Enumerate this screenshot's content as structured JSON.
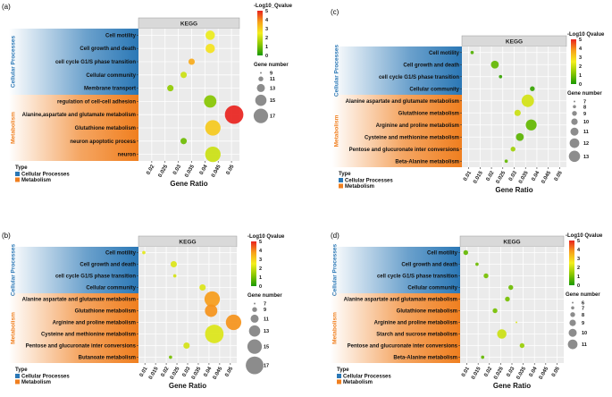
{
  "colors": {
    "cellular_bg": "#2b78b6",
    "metabolism_bg": "#f07f1f",
    "plot_bg": "#ebebeb",
    "header_bg": "#d9d9d9",
    "grid": "#ffffff",
    "scale": [
      "#1a9900",
      "#8cc800",
      "#f4ee1e",
      "#f7a11a",
      "#e8231e"
    ]
  },
  "chart_data": [
    {
      "panel_label": "(a)",
      "type": "scatter",
      "title": "KEGG",
      "xlabel": "Gene Ratio",
      "x_ticks": [
        "0.02",
        "0.025",
        "0.03",
        "0.035",
        "0.04",
        "0.045",
        "0.05"
      ],
      "xlim": [
        0.015,
        0.053
      ],
      "categories": [
        {
          "group": "Cellular Processes",
          "labels": [
            "Cell motility",
            "Cell growth and death",
            "cell cycle G1/S phase transition",
            "Cellular community",
            "Membrane transport"
          ]
        },
        {
          "group": "Metabolism",
          "labels": [
            "regulation of cell-cell adhesion",
            "Alanine,aspartate and glutamate metabolism",
            "Glutathione metabolism",
            "neuron apoptotic process",
            "neuron"
          ]
        }
      ],
      "points": [
        {
          "y": "Cell motility",
          "x": 0.042,
          "genes": 11,
          "q": 2.4
        },
        {
          "y": "Cell growth and death",
          "x": 0.042,
          "genes": 11,
          "q": 2.7
        },
        {
          "y": "cell cycle G1/S phase transition",
          "x": 0.035,
          "genes": 9,
          "q": 3.6
        },
        {
          "y": "Cellular community",
          "x": 0.032,
          "genes": 9,
          "q": 2.0
        },
        {
          "y": "Membrane transport",
          "x": 0.027,
          "genes": 9,
          "q": 1.3
        },
        {
          "y": "regulation of cell-cell adhesion",
          "x": 0.042,
          "genes": 13,
          "q": 1.2
        },
        {
          "y": "Alanine,aspartate and glutamate metabolism",
          "x": 0.051,
          "genes": 17,
          "q": 5.0
        },
        {
          "y": "Glutathione metabolism",
          "x": 0.043,
          "genes": 15,
          "q": 3.1
        },
        {
          "y": "neuron apoptotic process",
          "x": 0.032,
          "genes": 9,
          "q": 0.9
        },
        {
          "y": "neuron",
          "x": 0.043,
          "genes": 15,
          "q": 2.0
        }
      ],
      "color_legend_title": "-Log10_Qvalue",
      "color_ticks": [
        5,
        4,
        3,
        2,
        1,
        0
      ],
      "size_legend_title": "Gene number",
      "size_legend": [
        9,
        11,
        13,
        15,
        17
      ],
      "type_legend_title": "Type",
      "type_legend": [
        "Cellular Processes",
        "Metabolism"
      ]
    },
    {
      "panel_label": "(b)",
      "type": "scatter",
      "title": "KEGG",
      "xlabel": "Gene Ratio",
      "x_ticks": [
        "0.01",
        "0.015",
        "0.02",
        "0.025",
        "0.03",
        "0.035",
        "0.04",
        "0.045",
        "0.05"
      ],
      "xlim": [
        0.007,
        0.053
      ],
      "categories": [
        {
          "group": "Cellular Processes",
          "labels": [
            "Cell motility",
            "Cell growth and death",
            "cell cycle G1/S phase transition",
            "Cellular community"
          ]
        },
        {
          "group": "Metabolism",
          "labels": [
            "Alanine aspartate and glutamate metabolism",
            "Glutathione metabolism",
            "Arginine and proline metabolism",
            "Cysteine and methionine metabolism",
            "Pentose and glucuronate inter conversions",
            "Butanoate metabolism"
          ]
        }
      ],
      "points": [
        {
          "y": "Cell motility",
          "x": 0.0095,
          "genes": 7,
          "q": 2.3
        },
        {
          "y": "Cell growth and death",
          "x": 0.0235,
          "genes": 9,
          "q": 2.2
        },
        {
          "y": "cell cycle G1/S phase transition",
          "x": 0.024,
          "genes": 7,
          "q": 2.1
        },
        {
          "y": "Cellular community",
          "x": 0.037,
          "genes": 9,
          "q": 2.2
        },
        {
          "y": "Alanine aspartate and glutamate metabolism",
          "x": 0.0415,
          "genes": 15,
          "q": 3.8
        },
        {
          "y": "Glutathione metabolism",
          "x": 0.041,
          "genes": 13,
          "q": 3.9
        },
        {
          "y": "Arginine and proline metabolism",
          "x": 0.0515,
          "genes": 15,
          "q": 3.9
        },
        {
          "y": "Cysteine and methionine metabolism",
          "x": 0.0425,
          "genes": 17,
          "q": 2.2
        },
        {
          "y": "Pentose and glucuronate inter conversions",
          "x": 0.0295,
          "genes": 9,
          "q": 2.1
        },
        {
          "y": "Butanoate metabolism",
          "x": 0.022,
          "genes": 7,
          "q": 1.0
        }
      ],
      "color_legend_title": "-Log10 Qvalue",
      "color_ticks": [
        5,
        4,
        3,
        2,
        1,
        0
      ],
      "size_legend_title": "Gene number",
      "size_legend": [
        7,
        9,
        11,
        13,
        15,
        17
      ],
      "type_legend_title": "Type",
      "type_legend": [
        "Cellular Processes",
        "Metabolism"
      ]
    },
    {
      "panel_label": "(c)",
      "type": "scatter",
      "title": "KEGG",
      "xlabel": "Gene Ratio",
      "x_ticks": [
        "0.01",
        "0.015",
        "0.02",
        "0.025",
        "0.03",
        "0.035",
        "0.04",
        "0.045",
        "0.05"
      ],
      "xlim": [
        0.007,
        0.053
      ],
      "categories": [
        {
          "group": "Cellular Processes",
          "labels": [
            "Cell motility",
            "Cell growth and death",
            "cell cycle G1/S phase transition",
            "Cellular community"
          ]
        },
        {
          "group": "Metabolism",
          "labels": [
            "Alanine aspartate and glutamate metabolism",
            "Glutathione metabolism",
            "Arginine and proline metabolism",
            "Cysteine and methionine metabolism",
            "Pentose and glucuronate inter conversions",
            "Beta-Alanine metabolism"
          ]
        }
      ],
      "points": [
        {
          "y": "Cell motility",
          "x": 0.0115,
          "genes": 7,
          "q": 0.6
        },
        {
          "y": "Cell growth and death",
          "x": 0.0215,
          "genes": 10,
          "q": 0.8
        },
        {
          "y": "cell cycle G1/S phase transition",
          "x": 0.024,
          "genes": 7,
          "q": 0.3
        },
        {
          "y": "Cellular community",
          "x": 0.038,
          "genes": 8,
          "q": 0.3
        },
        {
          "y": "Alanine aspartate and glutamate metabolism",
          "x": 0.036,
          "genes": 13,
          "q": 2.1
        },
        {
          "y": "Glutathione metabolism",
          "x": 0.0315,
          "genes": 9,
          "q": 2.0
        },
        {
          "y": "Arginine and proline metabolism",
          "x": 0.0375,
          "genes": 12,
          "q": 0.8
        },
        {
          "y": "Cysteine and methionine metabolism",
          "x": 0.0325,
          "genes": 10,
          "q": 0.7
        },
        {
          "y": "Pentose and glucuronate inter conversions",
          "x": 0.0295,
          "genes": 8,
          "q": 1.5
        },
        {
          "y": "Beta-Alanine metabolism",
          "x": 0.0265,
          "genes": 7,
          "q": 0.8
        }
      ],
      "color_legend_title": "-Log10 Qvalue",
      "color_ticks": [
        5,
        4,
        3,
        2,
        1,
        0
      ],
      "size_legend_title": "Gene number",
      "size_legend": [
        7,
        8,
        9,
        10,
        11,
        12,
        13
      ],
      "type_legend_title": "Type",
      "type_legend": [
        "Cellular Processes",
        "Metabolism"
      ]
    },
    {
      "panel_label": "(d)",
      "type": "scatter",
      "title": "KEGG",
      "xlabel": "Gene Ratio",
      "x_ticks": [
        "0.01",
        "0.015",
        "0.02",
        "0.025",
        "0.03",
        "0.035",
        "0.04",
        "0.045",
        "0.05"
      ],
      "xlim": [
        0.007,
        0.053
      ],
      "categories": [
        {
          "group": "Cellular Processes",
          "labels": [
            "Cell motility",
            "Cell growth and death",
            "cell cycle G1/S phase transition",
            "Cellular community"
          ]
        },
        {
          "group": "Metabolism",
          "labels": [
            "Alanine aspartate and glutamate metabolism",
            "Glutathione metabolism",
            "Arginine and proline metabolism",
            "Starch and sucrose metabolism",
            "Pentose and glucuronate inter conversions",
            "Beta-Alanine metabolism"
          ]
        }
      ],
      "points": [
        {
          "y": "Cell motility",
          "x": 0.0095,
          "genes": 8,
          "q": 0.8
        },
        {
          "y": "Cell growth and death",
          "x": 0.0145,
          "genes": 7,
          "q": 0.9
        },
        {
          "y": "cell cycle G1/S phase transition",
          "x": 0.0185,
          "genes": 8,
          "q": 1.0
        },
        {
          "y": "Cellular community",
          "x": 0.0295,
          "genes": 8,
          "q": 0.9
        },
        {
          "y": "Alanine aspartate and glutamate metabolism",
          "x": 0.028,
          "genes": 8,
          "q": 1.0
        },
        {
          "y": "Glutathione metabolism",
          "x": 0.0225,
          "genes": 8,
          "q": 1.0
        },
        {
          "y": "Arginine and proline metabolism",
          "x": 0.032,
          "genes": 6,
          "q": 2.2
        },
        {
          "y": "Starch and sucrose metabolism",
          "x": 0.0255,
          "genes": 11,
          "q": 2.0
        },
        {
          "y": "Pentose and glucuronate inter conversions",
          "x": 0.0345,
          "genes": 8,
          "q": 1.4
        },
        {
          "y": "Beta-Alanine metabolism",
          "x": 0.017,
          "genes": 7,
          "q": 0.8
        }
      ],
      "color_legend_title": "-Log10 Qvalue",
      "color_ticks": [
        5,
        4,
        3,
        2,
        1,
        0
      ],
      "size_legend_title": "Gene number",
      "size_legend": [
        6,
        7,
        8,
        9,
        10,
        11
      ],
      "type_legend_title": "Type",
      "type_legend": [
        "Cellular Processes",
        "Metabolism"
      ]
    }
  ]
}
